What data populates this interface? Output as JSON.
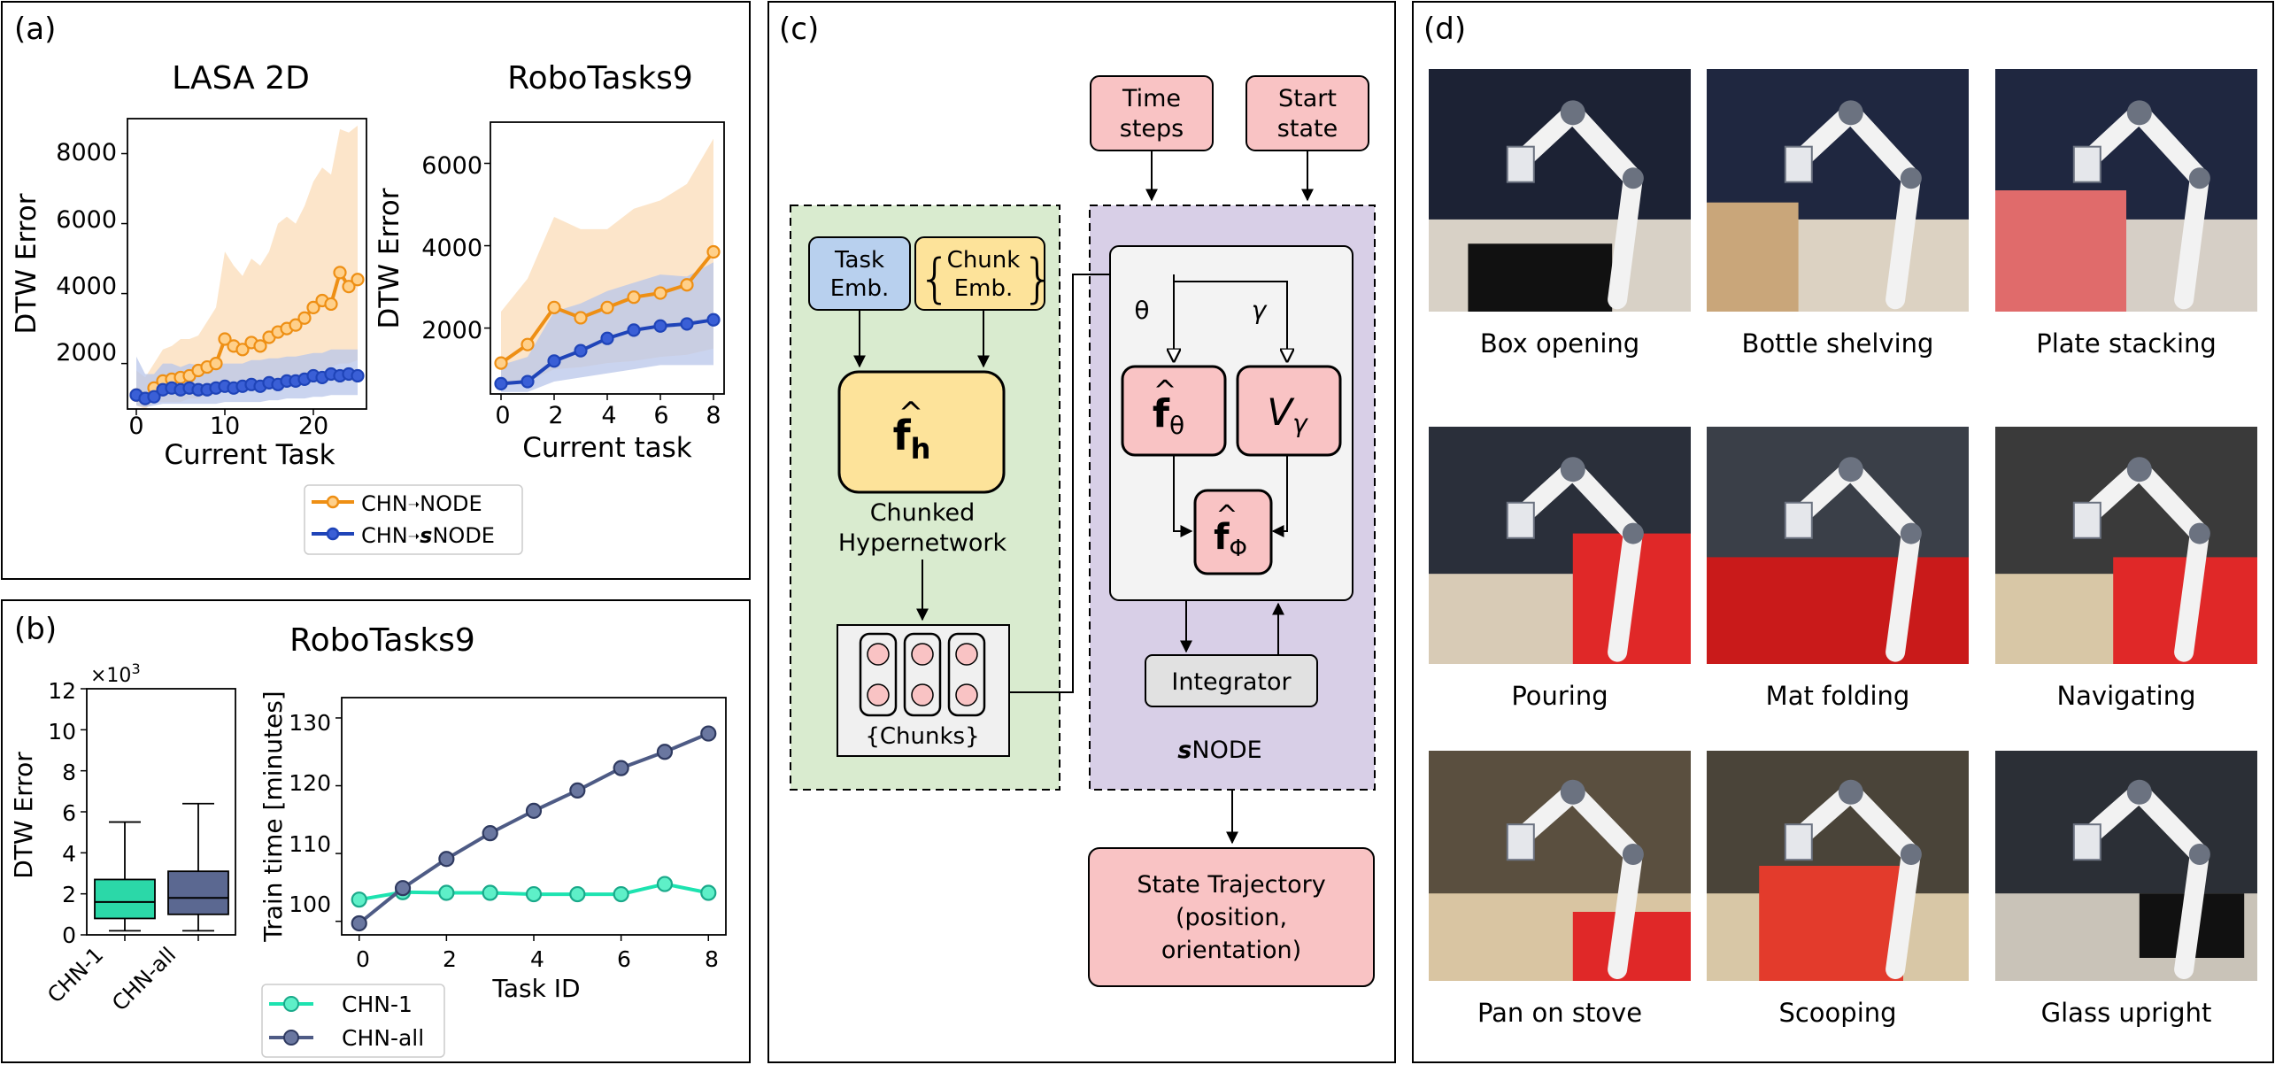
{
  "panels": {
    "a": {
      "label": "(a)",
      "lasa": {
        "title": "LASA 2D",
        "ylabel": "DTW Error",
        "xlabel": "Current Task",
        "yticks": [
          "2000",
          "4000",
          "6000",
          "8000"
        ],
        "xticks": [
          "0",
          "10",
          "20"
        ]
      },
      "robo": {
        "title": "RoboTasks9",
        "ylabel": "DTW Error",
        "xlabel": "Current task",
        "yticks": [
          "2000",
          "4000",
          "6000"
        ],
        "xticks": [
          "0",
          "2",
          "4",
          "6",
          "8"
        ]
      },
      "legend": [
        {
          "key": "chn_node",
          "prefix": "CHN",
          "suffix": "NODE",
          "bold_s": false
        },
        {
          "key": "chn_snode",
          "prefix": "CHN",
          "suffix": "NODE",
          "bold_s": true
        }
      ]
    },
    "b": {
      "label": "(b)",
      "title": "RoboTasks9",
      "box": {
        "ylabel": "DTW Error",
        "multiplier": "×10",
        "multiplier_exp": "3",
        "yticks": [
          "0",
          "2",
          "4",
          "6",
          "8",
          "10",
          "12"
        ],
        "categories": [
          "CHN-1",
          "CHN-all"
        ]
      },
      "line": {
        "ylabel": "Train time [minutes]",
        "xlabel": "Task ID",
        "yticks": [
          "100",
          "110",
          "120",
          "130"
        ],
        "xticks": [
          "0",
          "2",
          "4",
          "6",
          "8"
        ]
      },
      "legend": [
        "CHN-1",
        "CHN-all"
      ]
    },
    "c": {
      "label": "(c)",
      "task_emb": [
        "Task",
        "Emb."
      ],
      "chunk_emb": [
        "Chunk",
        "Emb."
      ],
      "f_h_sub": "h",
      "hyper_label": [
        "Chunked",
        "Hypernetwork"
      ],
      "chunks_label": "{Chunks}",
      "time_steps": [
        "Time",
        "steps"
      ],
      "start_state": [
        "Start",
        "state"
      ],
      "theta": "θ",
      "gamma": "γ",
      "f_theta_sub": "θ",
      "v_gamma": "V",
      "v_gamma_sub": "γ",
      "f_phi_sub": "Φ",
      "integrator": "Integrator",
      "snode_s": "s",
      "snode": "NODE",
      "output": [
        "State Trajectory",
        "(position,",
        "orientation)"
      ]
    },
    "d": {
      "label": "(d)",
      "tasks": [
        "Box opening",
        "Bottle shelving",
        "Plate stacking",
        "Pouring",
        "Mat folding",
        "Navigating",
        "Pan on stove",
        "Scooping",
        "Glass upright"
      ]
    }
  },
  "colors": {
    "orange": "#ee8f14",
    "orange_band": "#fbdcb8",
    "blue": "#1f44b8",
    "blue_band": "#b8c6ea",
    "teal": "#1de3b0",
    "slate": "#4e5b85",
    "box1": "#2bd8a8",
    "box2": "#5b6891",
    "pink": "#f9c3c4",
    "yellow": "#fde39a",
    "lightblue": "#b8d0ee",
    "green_bg": "#d9ebcf",
    "purple_bg": "#d8cfe7",
    "grey_box": "#e1e1e1"
  },
  "chart_data": [
    {
      "type": "line",
      "title": "LASA 2D",
      "xlabel": "Current Task",
      "ylabel": "DTW Error",
      "xlim": [
        -1,
        26
      ],
      "ylim": [
        700,
        9000
      ],
      "series": [
        {
          "name": "CHN→NODE",
          "x": [
            0,
            1,
            2,
            3,
            4,
            5,
            6,
            7,
            8,
            9,
            10,
            11,
            12,
            13,
            14,
            15,
            16,
            17,
            18,
            19,
            20,
            21,
            22,
            23,
            24,
            25
          ],
          "values": [
            1100,
            1000,
            1300,
            1500,
            1550,
            1600,
            1650,
            1800,
            1900,
            2000,
            2700,
            2500,
            2400,
            2600,
            2500,
            2750,
            2900,
            3000,
            3100,
            3300,
            3600,
            3800,
            3700,
            4600,
            4200,
            4400
          ],
          "band_low": [
            800,
            700,
            900,
            900,
            900,
            900,
            1000,
            1000,
            1100,
            1100,
            1300,
            1300,
            1300,
            1400,
            1400,
            1500,
            1500,
            1600,
            1600,
            1700,
            1800,
            1800,
            1900,
            2000,
            2000,
            2100
          ],
          "band_high": [
            1800,
            1600,
            2000,
            2400,
            2500,
            2700,
            2700,
            2800,
            3200,
            3600,
            5200,
            4800,
            4500,
            5000,
            4800,
            5200,
            6000,
            6200,
            6000,
            6500,
            7200,
            7600,
            7400,
            8700,
            8600,
            8800
          ]
        },
        {
          "name": "CHN→sNODE",
          "x": [
            0,
            1,
            2,
            3,
            4,
            5,
            6,
            7,
            8,
            9,
            10,
            11,
            12,
            13,
            14,
            15,
            16,
            17,
            18,
            19,
            20,
            21,
            22,
            23,
            24,
            25
          ],
          "values": [
            1100,
            1000,
            1050,
            1250,
            1300,
            1250,
            1300,
            1250,
            1250,
            1300,
            1350,
            1300,
            1350,
            1400,
            1350,
            1450,
            1400,
            1500,
            1500,
            1550,
            1650,
            1600,
            1700,
            1650,
            1700,
            1650
          ],
          "band_low": [
            800,
            750,
            800,
            850,
            850,
            850,
            850,
            850,
            850,
            850,
            900,
            900,
            900,
            900,
            900,
            950,
            950,
            1000,
            1000,
            1000,
            1050,
            1050,
            1100,
            1100,
            1100,
            1100
          ],
          "band_high": [
            2200,
            1700,
            1700,
            2000,
            2000,
            1900,
            2000,
            1950,
            1950,
            2000,
            2000,
            2000,
            2000,
            2100,
            2100,
            2150,
            2150,
            2200,
            2200,
            2250,
            2300,
            2300,
            2400,
            2400,
            2400,
            2400
          ]
        }
      ]
    },
    {
      "type": "line",
      "title": "RoboTasks9",
      "xlabel": "Current task",
      "ylabel": "DTW Error",
      "xlim": [
        -0.4,
        8.4
      ],
      "ylim": [
        400,
        7000
      ],
      "series": [
        {
          "name": "CHN→NODE",
          "x": [
            0,
            1,
            2,
            3,
            4,
            5,
            6,
            7,
            8
          ],
          "values": [
            1150,
            1600,
            2500,
            2250,
            2500,
            2750,
            2850,
            3050,
            3850
          ],
          "band_low": [
            600,
            700,
            1000,
            1050,
            1150,
            1200,
            1300,
            1350,
            1500
          ],
          "band_high": [
            2400,
            3200,
            4700,
            4400,
            4400,
            4900,
            5100,
            5500,
            6600
          ]
        },
        {
          "name": "CHN→sNODE",
          "x": [
            0,
            1,
            2,
            3,
            4,
            5,
            6,
            7,
            8
          ],
          "values": [
            650,
            700,
            1200,
            1450,
            1750,
            1950,
            2050,
            2100,
            2200
          ],
          "band_low": [
            450,
            450,
            700,
            800,
            900,
            1000,
            1100,
            1100,
            1100
          ],
          "band_high": [
            1100,
            1300,
            2400,
            2600,
            2900,
            3100,
            3300,
            3250,
            3600
          ]
        }
      ]
    },
    {
      "type": "box",
      "ylabel": "DTW Error (×10^3)",
      "ylim": [
        0,
        12
      ],
      "categories": [
        "CHN-1",
        "CHN-all"
      ],
      "boxes": [
        {
          "whisker_low": 0.2,
          "q1": 0.8,
          "median": 1.6,
          "q3": 2.7,
          "whisker_high": 5.5
        },
        {
          "whisker_low": 0.2,
          "q1": 1.0,
          "median": 1.8,
          "q3": 3.1,
          "whisker_high": 6.4
        }
      ]
    },
    {
      "type": "line",
      "title": "RoboTasks9",
      "xlabel": "Task ID",
      "ylabel": "Train time [minutes]",
      "xlim": [
        -0.4,
        8.4
      ],
      "ylim": [
        98,
        133
      ],
      "series": [
        {
          "name": "CHN-1",
          "x": [
            0,
            1,
            2,
            3,
            4,
            5,
            6,
            7,
            8
          ],
          "values": [
            103.2,
            104.3,
            104.2,
            104.2,
            104.0,
            104.0,
            104.0,
            105.5,
            104.2
          ]
        },
        {
          "name": "CHN-all",
          "x": [
            0,
            1,
            2,
            3,
            4,
            5,
            6,
            7,
            8
          ],
          "values": [
            99.7,
            104.9,
            109.2,
            113.0,
            116.3,
            119.3,
            122.6,
            125.0,
            127.7
          ]
        }
      ]
    }
  ]
}
